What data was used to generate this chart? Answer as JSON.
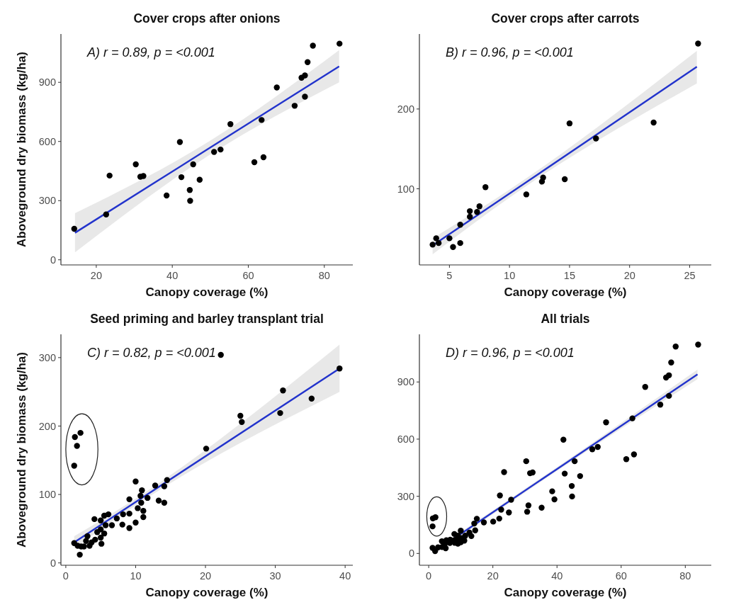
{
  "chart_data": [
    {
      "type": "scatter",
      "title": "Cover crops after onions",
      "xlabel": "Canopy coverage (%)",
      "ylabel": "Aboveground dry biomass (kg/ha)",
      "annotations": [
        "A) r = 0.89, p = <0.001"
      ],
      "xlim": [
        10.7,
        87.5
      ],
      "ylim": [
        -26,
        1145
      ],
      "xticks": [
        20,
        40,
        60,
        80
      ],
      "yticks": [
        0,
        300,
        600,
        900
      ],
      "grid": false,
      "series": [
        {
          "type": "scatter",
          "marker": "circle",
          "color": "#000000",
          "x": [
            14.2,
            22.6,
            23.5,
            30.4,
            31.6,
            32.4,
            38.5,
            42.0,
            42.4,
            45.5,
            44.6,
            44.7,
            47.2,
            51.0,
            52.7,
            55.3,
            61.6,
            64.0,
            63.5,
            67.5,
            72.2,
            74.0,
            74.9,
            74.9,
            75.6,
            77.0,
            84.0
          ],
          "values": [
            157,
            230,
            427,
            484,
            421,
            425,
            326,
            597,
            419,
            484,
            354,
            299,
            406,
            547,
            559,
            688,
            495,
            520,
            709,
            874,
            781,
            923,
            935,
            827,
            1002,
            1086,
            1096
          ]
        },
        {
          "type": "line",
          "marker": "none",
          "color": "#2233cc",
          "x": [
            14.4,
            50,
            83.9
          ],
          "values": [
            137,
            569,
            981
          ],
          "lower": [
            38,
            534,
            900
          ],
          "upper": [
            236,
            604,
            1063
          ]
        }
      ]
    },
    {
      "type": "scatter",
      "title": "Cover crops after carrots",
      "xlabel": "Canopy coverage (%)",
      "annotations": [
        "B) r = 0.96, p = <0.001"
      ],
      "xlim": [
        2.5,
        26.8
      ],
      "ylim": [
        4.6,
        294
      ],
      "xticks": [
        5,
        10,
        15,
        20,
        25
      ],
      "yticks": [
        100,
        200
      ],
      "grid": false,
      "series": [
        {
          "type": "scatter",
          "marker": "circle",
          "color": "#000000",
          "x": [
            3.6,
            3.9,
            4.1,
            5.0,
            5.3,
            5.9,
            5.9,
            6.7,
            6.7,
            7.3,
            7.5,
            8.0,
            11.4,
            12.7,
            12.8,
            14.6,
            15.0,
            17.2,
            22.0,
            25.7
          ],
          "values": [
            30,
            38,
            32,
            38,
            27,
            32,
            55,
            72,
            65,
            71,
            78,
            102,
            93,
            109,
            114,
            112,
            182,
            163,
            183,
            282
          ]
        },
        {
          "type": "line",
          "marker": "none",
          "color": "#2233cc",
          "x": [
            3.6,
            10,
            25.6
          ],
          "values": [
            29,
            94,
            253
          ],
          "lower": [
            18,
            89,
            232
          ],
          "upper": [
            38,
            99,
            273
          ]
        }
      ]
    },
    {
      "type": "scatter",
      "title": "Seed priming and barley transplant trial",
      "xlabel": "Canopy coverage (%)",
      "ylabel": "Aboveground dry biomass (kg/ha)",
      "annotations": [
        "C) r = 0.82, p = <0.001"
      ],
      "xlim": [
        -0.7,
        41.1
      ],
      "ylim": [
        -3.4,
        334
      ],
      "xticks": [
        0,
        10,
        20,
        30,
        40
      ],
      "yticks": [
        0,
        100,
        200,
        300
      ],
      "grid": false,
      "series": [
        {
          "type": "scatter",
          "marker": "circle",
          "color": "#000000",
          "x": [
            1.2,
            1.3,
            1.6,
            2.1,
            22.2,
            39.2,
            31.1,
            35.2,
            30.7,
            25.0,
            25.2,
            20.1,
            10.0,
            14.5,
            14.1,
            12.8,
            10.9,
            13.3,
            14.1,
            9.1,
            11.7,
            10.7,
            10.8,
            10.3,
            11.1,
            11.1,
            10.0,
            9.1,
            9.1,
            8.2,
            8.1,
            7.3,
            6.1,
            5.7,
            6.6,
            5.5,
            4.1,
            5.0,
            5.0,
            4.5,
            5.5,
            5.0,
            5.1,
            4.2,
            3.7,
            2.9,
            2.6,
            2.2,
            2.0,
            1.2,
            1.7,
            3.1,
            3.4
          ],
          "values": [
            142,
            184,
            171,
            190,
            304,
            284,
            252,
            240,
            219,
            215,
            206,
            167,
            119,
            121,
            112,
            113,
            106,
            91,
            88,
            93,
            95,
            98,
            88,
            80,
            76,
            67,
            59,
            51,
            72,
            71,
            56,
            65,
            71,
            55,
            55,
            69,
            64,
            62,
            49,
            45,
            43,
            37,
            28,
            34,
            30,
            32,
            24,
            24,
            12,
            29,
            25,
            39,
            25
          ]
        },
        {
          "type": "line",
          "marker": "none",
          "color": "#2233cc",
          "x": [
            1.2,
            10,
            39.2
          ],
          "values": [
            30,
            89,
            284
          ],
          "lower": [
            21,
            84,
            250
          ],
          "upper": [
            39,
            94,
            319
          ]
        }
      ]
    },
    {
      "type": "scatter",
      "title": "All trials",
      "xlabel": "Canopy coverage (%)",
      "annotations": [
        "D) r = 0.96, p = <0.001"
      ],
      "xlim": [
        -2.9,
        88.1
      ],
      "ylim": [
        -62,
        1150
      ],
      "xticks": [
        0,
        20,
        40,
        60,
        80
      ],
      "yticks": [
        0,
        300,
        600,
        900
      ],
      "grid": false,
      "series": [
        {
          "type": "scatter",
          "marker": "circle",
          "color": "#000000",
          "x": [
            14.2,
            22.6,
            23.5,
            30.4,
            31.6,
            32.4,
            38.5,
            42.0,
            42.4,
            45.5,
            44.6,
            44.7,
            47.2,
            51.0,
            52.7,
            55.3,
            61.6,
            64.0,
            63.5,
            67.5,
            72.2,
            74.0,
            74.9,
            74.9,
            75.6,
            77.0,
            84.0,
            1.2,
            1.2,
            1.3,
            2.1,
            2.0,
            2.9,
            4.1,
            4.2,
            5.0,
            5.3,
            5.5,
            6.7,
            6.6,
            8.0,
            8.1,
            8.2,
            9.1,
            9.1,
            9.1,
            10.0,
            10.0,
            10.3,
            11.1,
            11.4,
            12.7,
            13.3,
            14.5,
            15.0,
            17.2,
            20.1,
            22.0,
            22.2,
            25.0,
            25.7,
            30.7,
            31.1,
            35.2,
            39.2
          ],
          "values": [
            157,
            230,
            427,
            484,
            421,
            425,
            326,
            597,
            419,
            484,
            354,
            299,
            406,
            547,
            559,
            688,
            495,
            520,
            709,
            874,
            781,
            923,
            935,
            827,
            1002,
            1086,
            1096,
            29,
            142,
            184,
            190,
            12,
            32,
            64,
            34,
            49,
            27,
            69,
            72,
            55,
            102,
            56,
            71,
            51,
            93,
            72,
            119,
            59,
            80,
            67,
            93,
            109,
            91,
            121,
            182,
            163,
            167,
            183,
            304,
            215,
            282,
            219,
            252,
            240,
            284
          ]
        },
        {
          "type": "line",
          "marker": "none",
          "color": "#2233cc",
          "x": [
            1.5,
            40,
            83.8
          ],
          "values": [
            6,
            443,
            940
          ],
          "lower": [
            -6,
            433,
            915
          ],
          "upper": [
            18,
            453,
            965
          ]
        }
      ]
    }
  ]
}
